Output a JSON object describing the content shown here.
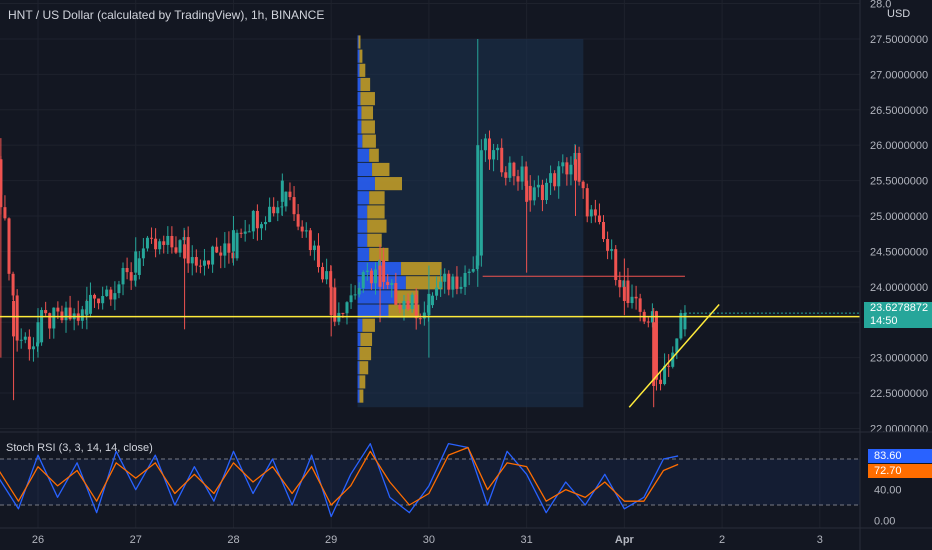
{
  "header": {
    "title": "HNT / US Dollar (calculated by TradingView), 1h, BINANCE",
    "currency": "USD"
  },
  "colors": {
    "background": "#131722",
    "up": "#26a69a",
    "down": "#ef5350",
    "trendline": "#ffeb3b",
    "vp_up": "#2962ff",
    "vp_down": "#c9a227",
    "poc": "#ef5350",
    "rsi_k": "#2962ff",
    "rsi_d": "#ff6d00"
  },
  "chart_data": [
    {
      "type": "candlestick",
      "title": "HNT / US Dollar (calculated by TradingView), 1h, BINANCE",
      "ylim": [
        21.95,
        28.05
      ],
      "xlim": [
        25.6,
        28.45
      ],
      "y_ticks": [
        "22.0000000",
        "22.5000000",
        "23.0000000",
        "23.5000000",
        "24.0000000",
        "24.5000000",
        "25.0000000",
        "25.5000000",
        "26.0000000",
        "26.5000000",
        "27.0000000",
        "27.5000000",
        "28.0"
      ],
      "x_tick_labels": [
        "26",
        "27",
        "28",
        "29",
        "30",
        "31",
        "Apr",
        "2",
        "3"
      ],
      "last_price": "23.6278872",
      "countdown": "14:50",
      "horizontal_level": 23.58,
      "poc_level": 24.15,
      "candles_sampled": [
        {
          "day": 25.62,
          "o": 25.8,
          "c": 25.3,
          "h": 26.1,
          "l": 23.0
        },
        {
          "day": 25.75,
          "o": 23.8,
          "c": 23.3,
          "h": 24.0,
          "l": 22.4
        },
        {
          "day": 26.0,
          "o": 23.2,
          "c": 23.5,
          "h": 23.7,
          "l": 23.0
        },
        {
          "day": 26.5,
          "o": 23.6,
          "c": 23.8,
          "h": 24.0,
          "l": 23.4
        },
        {
          "day": 27.0,
          "o": 24.2,
          "c": 24.5,
          "h": 24.7,
          "l": 24.0
        },
        {
          "day": 27.5,
          "o": 24.6,
          "c": 24.4,
          "h": 24.8,
          "l": 23.4
        },
        {
          "day": 28.0,
          "o": 24.5,
          "c": 24.8,
          "h": 25.0,
          "l": 24.3
        },
        {
          "day": 28.5,
          "o": 25.2,
          "c": 25.5,
          "h": 25.6,
          "l": 25.0
        },
        {
          "day": 29.0,
          "o": 24.0,
          "c": 23.6,
          "h": 24.3,
          "l": 23.3
        },
        {
          "day": 29.5,
          "o": 24.3,
          "c": 24.0,
          "h": 24.6,
          "l": 23.5
        },
        {
          "day": 30.0,
          "o": 23.6,
          "c": 23.9,
          "h": 24.3,
          "l": 23.0
        },
        {
          "day": 30.5,
          "o": 24.3,
          "c": 26.0,
          "h": 27.5,
          "l": 24.0
        },
        {
          "day": 31.0,
          "o": 25.5,
          "c": 25.2,
          "h": 25.7,
          "l": 24.2
        },
        {
          "day": 31.5,
          "o": 25.8,
          "c": 25.5,
          "h": 26.0,
          "l": 25.0
        },
        {
          "day": 32.0,
          "o": 24.0,
          "c": 23.8,
          "h": 24.4,
          "l": 23.6
        },
        {
          "day": 32.3,
          "o": 23.5,
          "c": 22.6,
          "h": 23.7,
          "l": 22.3
        },
        {
          "day": 32.62,
          "o": 23.4,
          "c": 23.63,
          "h": 23.65,
          "l": 23.3
        }
      ],
      "trendline": {
        "from": {
          "day": 32.05,
          "price": 22.3
        },
        "to": {
          "day": 32.97,
          "price": 23.75
        }
      },
      "volume_profile": {
        "price_range": [
          22.3,
          27.5
        ],
        "start_day": 29.27,
        "end_day": 31.58,
        "rows": [
          {
            "price": 22.45,
            "up": 2,
            "down": 4
          },
          {
            "price": 22.65,
            "up": 2,
            "down": 6
          },
          {
            "price": 22.85,
            "up": 2,
            "down": 9
          },
          {
            "price": 23.05,
            "up": 2,
            "down": 12
          },
          {
            "price": 23.25,
            "up": 3,
            "down": 12
          },
          {
            "price": 23.45,
            "up": 5,
            "down": 13
          },
          {
            "price": 23.65,
            "up": 32,
            "down": 32
          },
          {
            "price": 23.85,
            "up": 38,
            "down": 25
          },
          {
            "price": 24.05,
            "up": 50,
            "down": 38
          },
          {
            "price": 24.25,
            "up": 45,
            "down": 42
          },
          {
            "price": 24.45,
            "up": 12,
            "down": 20
          },
          {
            "price": 24.65,
            "up": 10,
            "down": 15
          },
          {
            "price": 24.85,
            "up": 10,
            "down": 20
          },
          {
            "price": 25.05,
            "up": 10,
            "down": 18
          },
          {
            "price": 25.25,
            "up": 12,
            "down": 16
          },
          {
            "price": 25.45,
            "up": 18,
            "down": 28
          },
          {
            "price": 25.65,
            "up": 15,
            "down": 18
          },
          {
            "price": 25.85,
            "up": 12,
            "down": 10
          },
          {
            "price": 26.05,
            "up": 5,
            "down": 14
          },
          {
            "price": 26.25,
            "up": 4,
            "down": 14
          },
          {
            "price": 26.45,
            "up": 4,
            "down": 12
          },
          {
            "price": 26.65,
            "up": 3,
            "down": 15
          },
          {
            "price": 26.85,
            "up": 3,
            "down": 10
          },
          {
            "price": 27.05,
            "up": 2,
            "down": 6
          },
          {
            "price": 27.25,
            "up": 2,
            "down": 3
          },
          {
            "price": 27.45,
            "up": 1,
            "down": 2
          }
        ]
      }
    },
    {
      "type": "line",
      "title": "Stoch RSI (3, 3, 14, 14, close)",
      "ylim": [
        -10,
        110
      ],
      "y_ticks": [
        "0.00",
        "40.00"
      ],
      "bands": [
        20,
        80
      ],
      "series": [
        {
          "name": "K",
          "last_label": "83.60",
          "x": [
            25.6,
            25.8,
            26.0,
            26.2,
            26.4,
            26.6,
            26.8,
            27.0,
            27.2,
            27.4,
            27.6,
            27.8,
            28.0,
            28.2,
            28.4,
            28.6,
            28.8,
            29.0,
            29.2,
            29.4,
            29.6,
            29.8,
            30.0,
            30.2,
            30.4,
            30.6,
            30.8,
            31.0,
            31.2,
            31.4,
            31.6,
            31.8,
            32.0,
            32.2,
            32.4,
            32.55
          ],
          "values": [
            55,
            15,
            85,
            30,
            75,
            10,
            90,
            40,
            85,
            20,
            70,
            25,
            90,
            35,
            80,
            20,
            85,
            5,
            60,
            100,
            30,
            10,
            45,
            100,
            95,
            20,
            90,
            60,
            10,
            50,
            20,
            60,
            15,
            30,
            80,
            84
          ]
        },
        {
          "name": "D",
          "last_label": "72.70",
          "x": [
            25.6,
            25.8,
            26.0,
            26.2,
            26.4,
            26.6,
            26.8,
            27.0,
            27.2,
            27.4,
            27.6,
            27.8,
            28.0,
            28.2,
            28.4,
            28.6,
            28.8,
            29.0,
            29.2,
            29.4,
            29.6,
            29.8,
            30.0,
            30.2,
            30.4,
            30.6,
            30.8,
            31.0,
            31.2,
            31.4,
            31.6,
            31.8,
            32.0,
            32.2,
            32.4,
            32.55
          ],
          "values": [
            65,
            25,
            70,
            45,
            65,
            25,
            75,
            55,
            75,
            35,
            60,
            35,
            75,
            50,
            70,
            35,
            70,
            20,
            45,
            90,
            50,
            20,
            35,
            85,
            95,
            40,
            75,
            70,
            25,
            40,
            30,
            50,
            25,
            25,
            65,
            73
          ]
        }
      ]
    }
  ]
}
